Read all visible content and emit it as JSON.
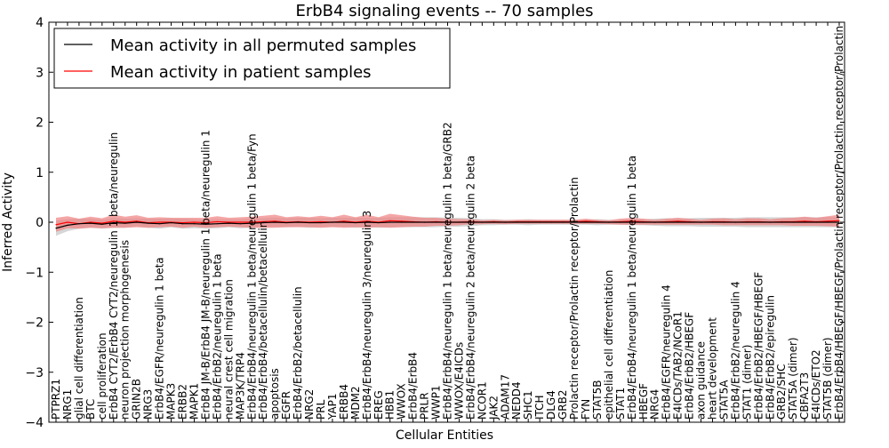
{
  "chart_data": {
    "type": "line",
    "title": "ErbB4 signaling events -- 70 samples",
    "xlabel": "Cellular Entities",
    "ylabel": "Inferred Activity",
    "ylim": [
      -4,
      4
    ],
    "yticks": [
      -4,
      -3,
      -2,
      -1,
      0,
      1,
      2,
      3,
      4
    ],
    "grid": false,
    "legend_position": "top-left",
    "categories": [
      "PTPRZ1",
      "NRG1",
      "glial cell differentiation",
      "BTC",
      "cell proliferation",
      "ErbB4 CYT2/ErbB4 CYT2/neuregulin 1 beta/neuregulin",
      "neuron projection morphogenesis",
      "GRIN2B",
      "NRG3",
      "ErbB4/EGFR/neuregulin 1 beta",
      "MAPK3",
      "ERBB2",
      "MAPK1",
      "ErbB4 JM-B/ErbB4 JM-B/neuregulin 1 beta/neuregulin 1",
      "ErbB4/ErbB2/neuregulin 1 beta",
      "neural crest cell migration",
      "MAP3K/TRP4",
      "ErbB4/ErbB4/neuregulin 1 beta/neuregulin 1 beta/Fyn",
      "ErbB4/ErbB4/betacellulin/betacellulin",
      "apoptosis",
      "EGFR",
      "ErbB4/ErbB2/betacellulin",
      "NRG2",
      "PRL",
      "YAP1",
      "ERBB4",
      "MDM2",
      "ErbB4/ErbB4/neuregulin 3/neuregulin 3",
      "EREG",
      "HBB1",
      "WWOX",
      "ErbB4/ErbB4",
      "PRLR",
      "WWP1",
      "ErbB4/ErbB4/neuregulin 1 beta/neuregulin 1 beta/GRB2",
      "WWOX/E4ICDs",
      "ErbB4/ErbB4/neuregulin 2 beta/neuregulin 2 beta",
      "NCOR1",
      "JAK2",
      "ADAM17",
      "NEDD4",
      "SHC1",
      "ITCH",
      "DLG4",
      "GRB2",
      "Prolactin receptor/Prolactin receptor/Prolactin",
      "FYN",
      "STAT5B",
      "epithelial cell differentiation",
      "STAT1",
      "ErbB4/ErbB4/neuregulin 1 beta/neuregulin 1 beta",
      "HBEGF",
      "NRG4",
      "ErbB4/EGFR/neuregulin 4",
      "E4ICDs/TAB2/NCoR1",
      "ErbB4/ErbB2/HBEGF",
      "axon guidance",
      "heart development",
      "STAT5A",
      "ErbB4/ErbB2/neuregulin 4",
      "STAT1 (dimer)",
      "ErbB4/ErbB2/HBEGF/HBEGF",
      "ErbB4/ErbB2/epiregulin",
      "GRB2/SHC",
      "STAT5A (dimer)",
      "CBFA2T3",
      "E4ICDs/ETO2",
      "STAT5B (dimer)",
      "ErbB4/ErbB4/HBEGF/HBEGF/Prolactin receptor/Prolactin receptor/Prolactin"
    ],
    "series": [
      {
        "name": "Mean activity in all permuted samples",
        "color": "#000000",
        "band_color": "#c8c8c8",
        "values": [
          -0.12,
          -0.06,
          -0.03,
          -0.02,
          -0.04,
          -0.01,
          -0.02,
          0.0,
          -0.02,
          -0.03,
          -0.01,
          -0.03,
          -0.03,
          -0.04,
          -0.03,
          -0.02,
          -0.03,
          -0.02,
          -0.01,
          0.0,
          -0.01,
          0.0,
          -0.01,
          -0.01,
          0.0,
          0.0,
          -0.01,
          0.0,
          -0.01,
          0.0,
          0.0,
          0.0,
          0.0,
          0.0,
          0.0,
          0.0,
          0.0,
          0.0,
          0.0,
          0.0,
          0.0,
          0.0,
          0.0,
          0.0,
          0.0,
          0.0,
          0.0,
          0.0,
          0.0,
          0.0,
          0.0,
          0.0,
          0.0,
          0.0,
          0.0,
          0.0,
          0.0,
          0.0,
          0.0,
          0.0,
          0.0,
          0.0,
          0.0,
          0.0,
          0.0,
          0.0,
          0.0,
          0.0,
          0.0
        ],
        "band": [
          0.15,
          0.12,
          0.1,
          0.09,
          0.09,
          0.1,
          0.09,
          0.08,
          0.09,
          0.1,
          0.09,
          0.1,
          0.09,
          0.09,
          0.09,
          0.08,
          0.09,
          0.09,
          0.09,
          0.09,
          0.09,
          0.09,
          0.1,
          0.09,
          0.09,
          0.09,
          0.1,
          0.09,
          0.1,
          0.1,
          0.1,
          0.1,
          0.1,
          0.1,
          0.09,
          0.09,
          0.08,
          0.06,
          0.06,
          0.05,
          0.05,
          0.06,
          0.05,
          0.05,
          0.05,
          0.05,
          0.05,
          0.06,
          0.05,
          0.05,
          0.06,
          0.06,
          0.07,
          0.08,
          0.08,
          0.08,
          0.09,
          0.09,
          0.09,
          0.09,
          0.1,
          0.1,
          0.1,
          0.1,
          0.1,
          0.1,
          0.1,
          0.1,
          0.1
        ]
      },
      {
        "name": "Mean activity in patient samples",
        "color": "#ff0000",
        "band_color": "#f08080",
        "values": [
          -0.05,
          0.0,
          -0.03,
          0.0,
          -0.02,
          0.02,
          0.0,
          0.02,
          -0.01,
          0.0,
          0.0,
          -0.01,
          0.0,
          -0.01,
          0.01,
          0.0,
          0.0,
          0.0,
          0.01,
          0.02,
          0.0,
          0.01,
          0.0,
          0.01,
          0.0,
          0.02,
          0.0,
          0.02,
          0.0,
          0.03,
          0.02,
          0.01,
          0.0,
          0.01,
          0.0,
          0.0,
          0.01,
          0.0,
          0.01,
          0.0,
          0.01,
          0.01,
          0.01,
          0.01,
          0.01,
          0.01,
          0.02,
          0.01,
          0.0,
          0.01,
          0.02,
          0.01,
          0.0,
          0.01,
          0.02,
          0.01,
          0.0,
          0.01,
          0.01,
          0.0,
          0.01,
          0.01,
          0.0,
          0.01,
          0.01,
          0.02,
          0.01,
          0.02,
          0.03
        ],
        "band": [
          0.14,
          0.12,
          0.1,
          0.11,
          0.1,
          0.13,
          0.11,
          0.12,
          0.1,
          0.1,
          0.09,
          0.1,
          0.09,
          0.1,
          0.11,
          0.09,
          0.1,
          0.11,
          0.12,
          0.13,
          0.1,
          0.11,
          0.1,
          0.12,
          0.1,
          0.13,
          0.1,
          0.13,
          0.1,
          0.14,
          0.12,
          0.1,
          0.09,
          0.08,
          0.07,
          0.06,
          0.05,
          0.04,
          0.04,
          0.04,
          0.04,
          0.04,
          0.04,
          0.04,
          0.04,
          0.04,
          0.05,
          0.04,
          0.04,
          0.06,
          0.07,
          0.06,
          0.05,
          0.06,
          0.07,
          0.06,
          0.05,
          0.06,
          0.07,
          0.06,
          0.07,
          0.07,
          0.06,
          0.07,
          0.08,
          0.09,
          0.08,
          0.1,
          0.12
        ]
      }
    ]
  }
}
